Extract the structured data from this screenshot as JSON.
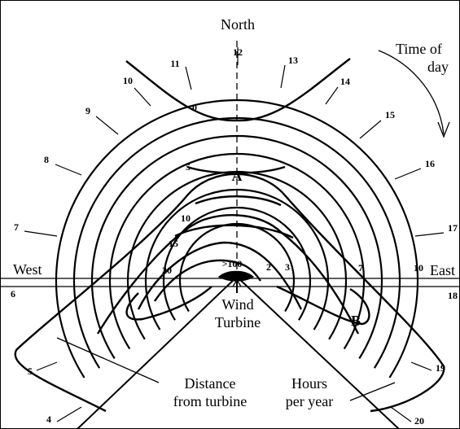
{
  "labels": {
    "north": "North",
    "west": "West",
    "east": "East",
    "time_of_day": [
      "Time of",
      "day"
    ],
    "wind_turbine": [
      "Wind",
      "Turbine"
    ],
    "distance": [
      "Distance",
      "from turbine"
    ],
    "hours": [
      "Hours",
      "per year"
    ],
    "point_a": "A",
    "point_b": "B"
  },
  "hour_ticks": [
    "4",
    "5",
    "6",
    "7",
    "8",
    "9",
    "10",
    "11",
    "12",
    "13",
    "14",
    "15",
    "16",
    "17",
    "18",
    "19",
    "20"
  ],
  "contour_labels": [
    "0",
    "5",
    "10",
    "15",
    "20",
    ">100",
    "2",
    "3",
    "7",
    "10"
  ]
}
